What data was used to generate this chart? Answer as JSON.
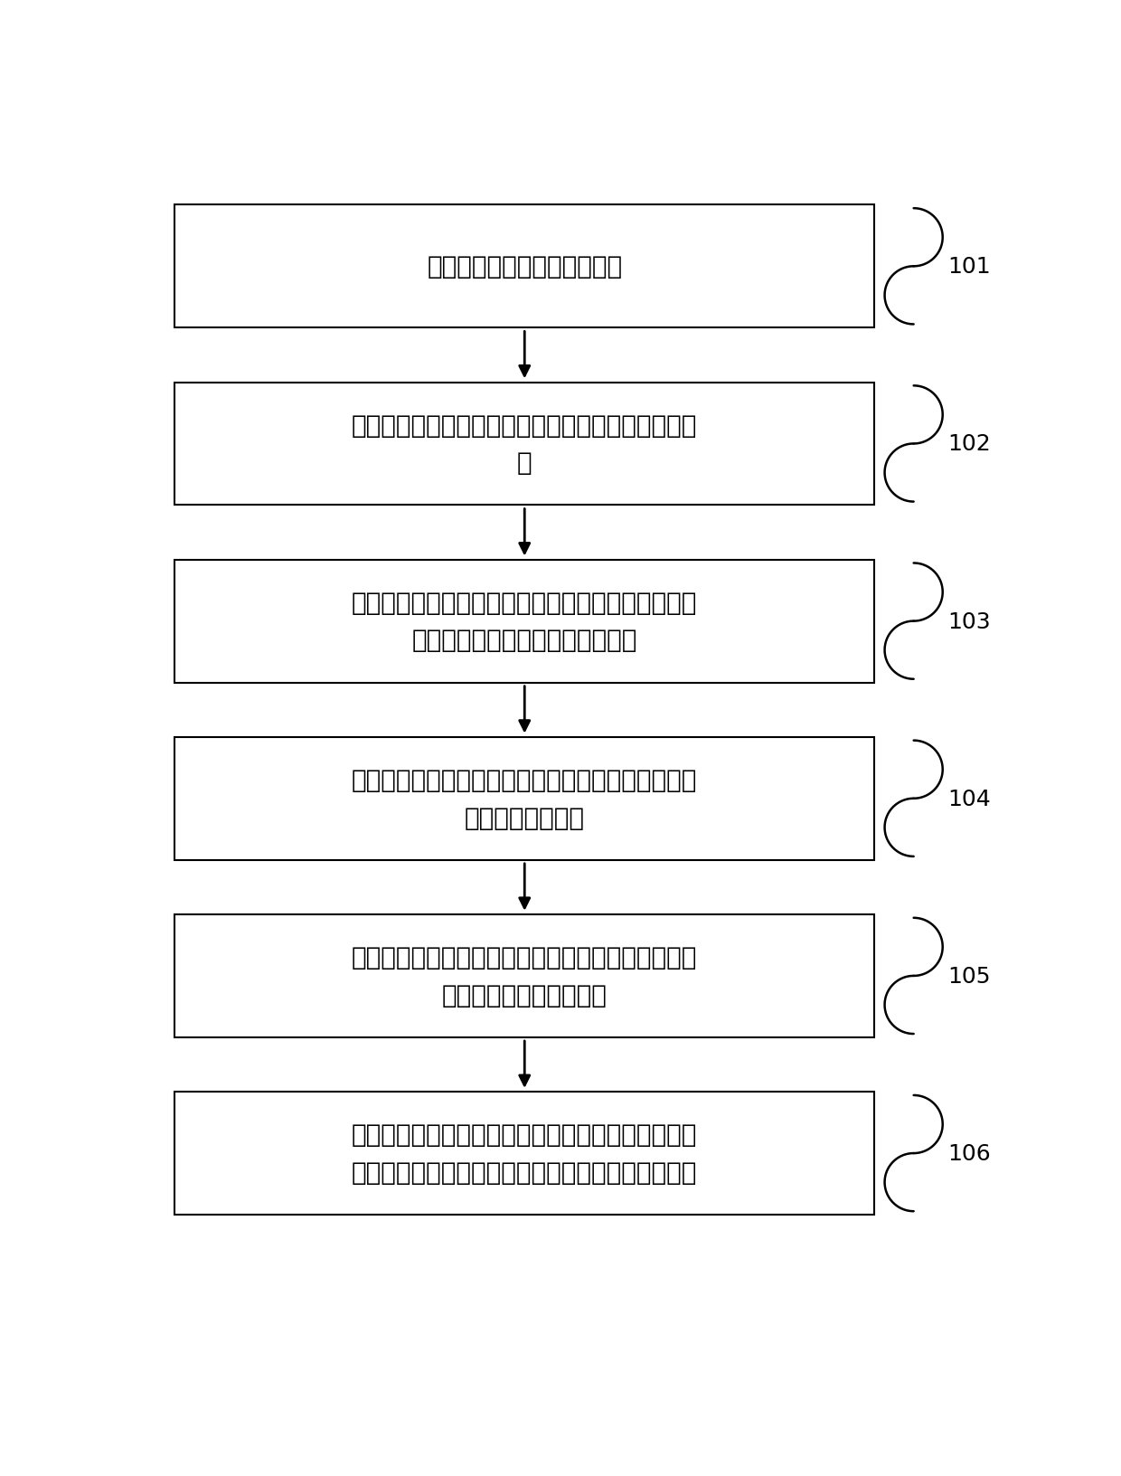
{
  "background_color": "#ffffff",
  "box_color": "#ffffff",
  "box_edge_color": "#000000",
  "box_edge_width": 1.5,
  "arrow_color": "#000000",
  "text_color": "#000000",
  "label_color": "#000000",
  "boxes": [
    {
      "id": 101,
      "label": "101",
      "text_lines": [
        "获取目的层系的钓井测井曲线"
      ]
    },
    {
      "id": 102,
      "label": "102",
      "text_lines": [
        "根据所述钓井测井曲线，确定出分流河道的测井相特",
        "征"
      ]
    },
    {
      "id": 103,
      "label": "103",
      "text_lines": [
        "根据所述测井相特征在地震剖面上标定出分流河道的",
        "位置，得到分流河道的地震相特征"
      ]
    },
    {
      "id": 104,
      "label": "104",
      "text_lines": [
        "基于所述测井曲线进行地震波形反演，得到目的层系",
        "中分流河道的位置"
      ]
    },
    {
      "id": 105,
      "label": "105",
      "text_lines": [
        "根据所述地震相特征对所述目的层系进行构造精细解",
        "释，以恢复得到微古地貌"
      ]
    },
    {
      "id": 106,
      "label": "106",
      "text_lines": [
        "基于所述地震相特征、反演得到的分流河道的位置和",
        "所述微古地貌，得到所述目的层系中分流河道的展布"
      ]
    }
  ],
  "font_size_box": 20,
  "font_size_label": 18,
  "fig_width": 12.4,
  "fig_height": 16.33
}
